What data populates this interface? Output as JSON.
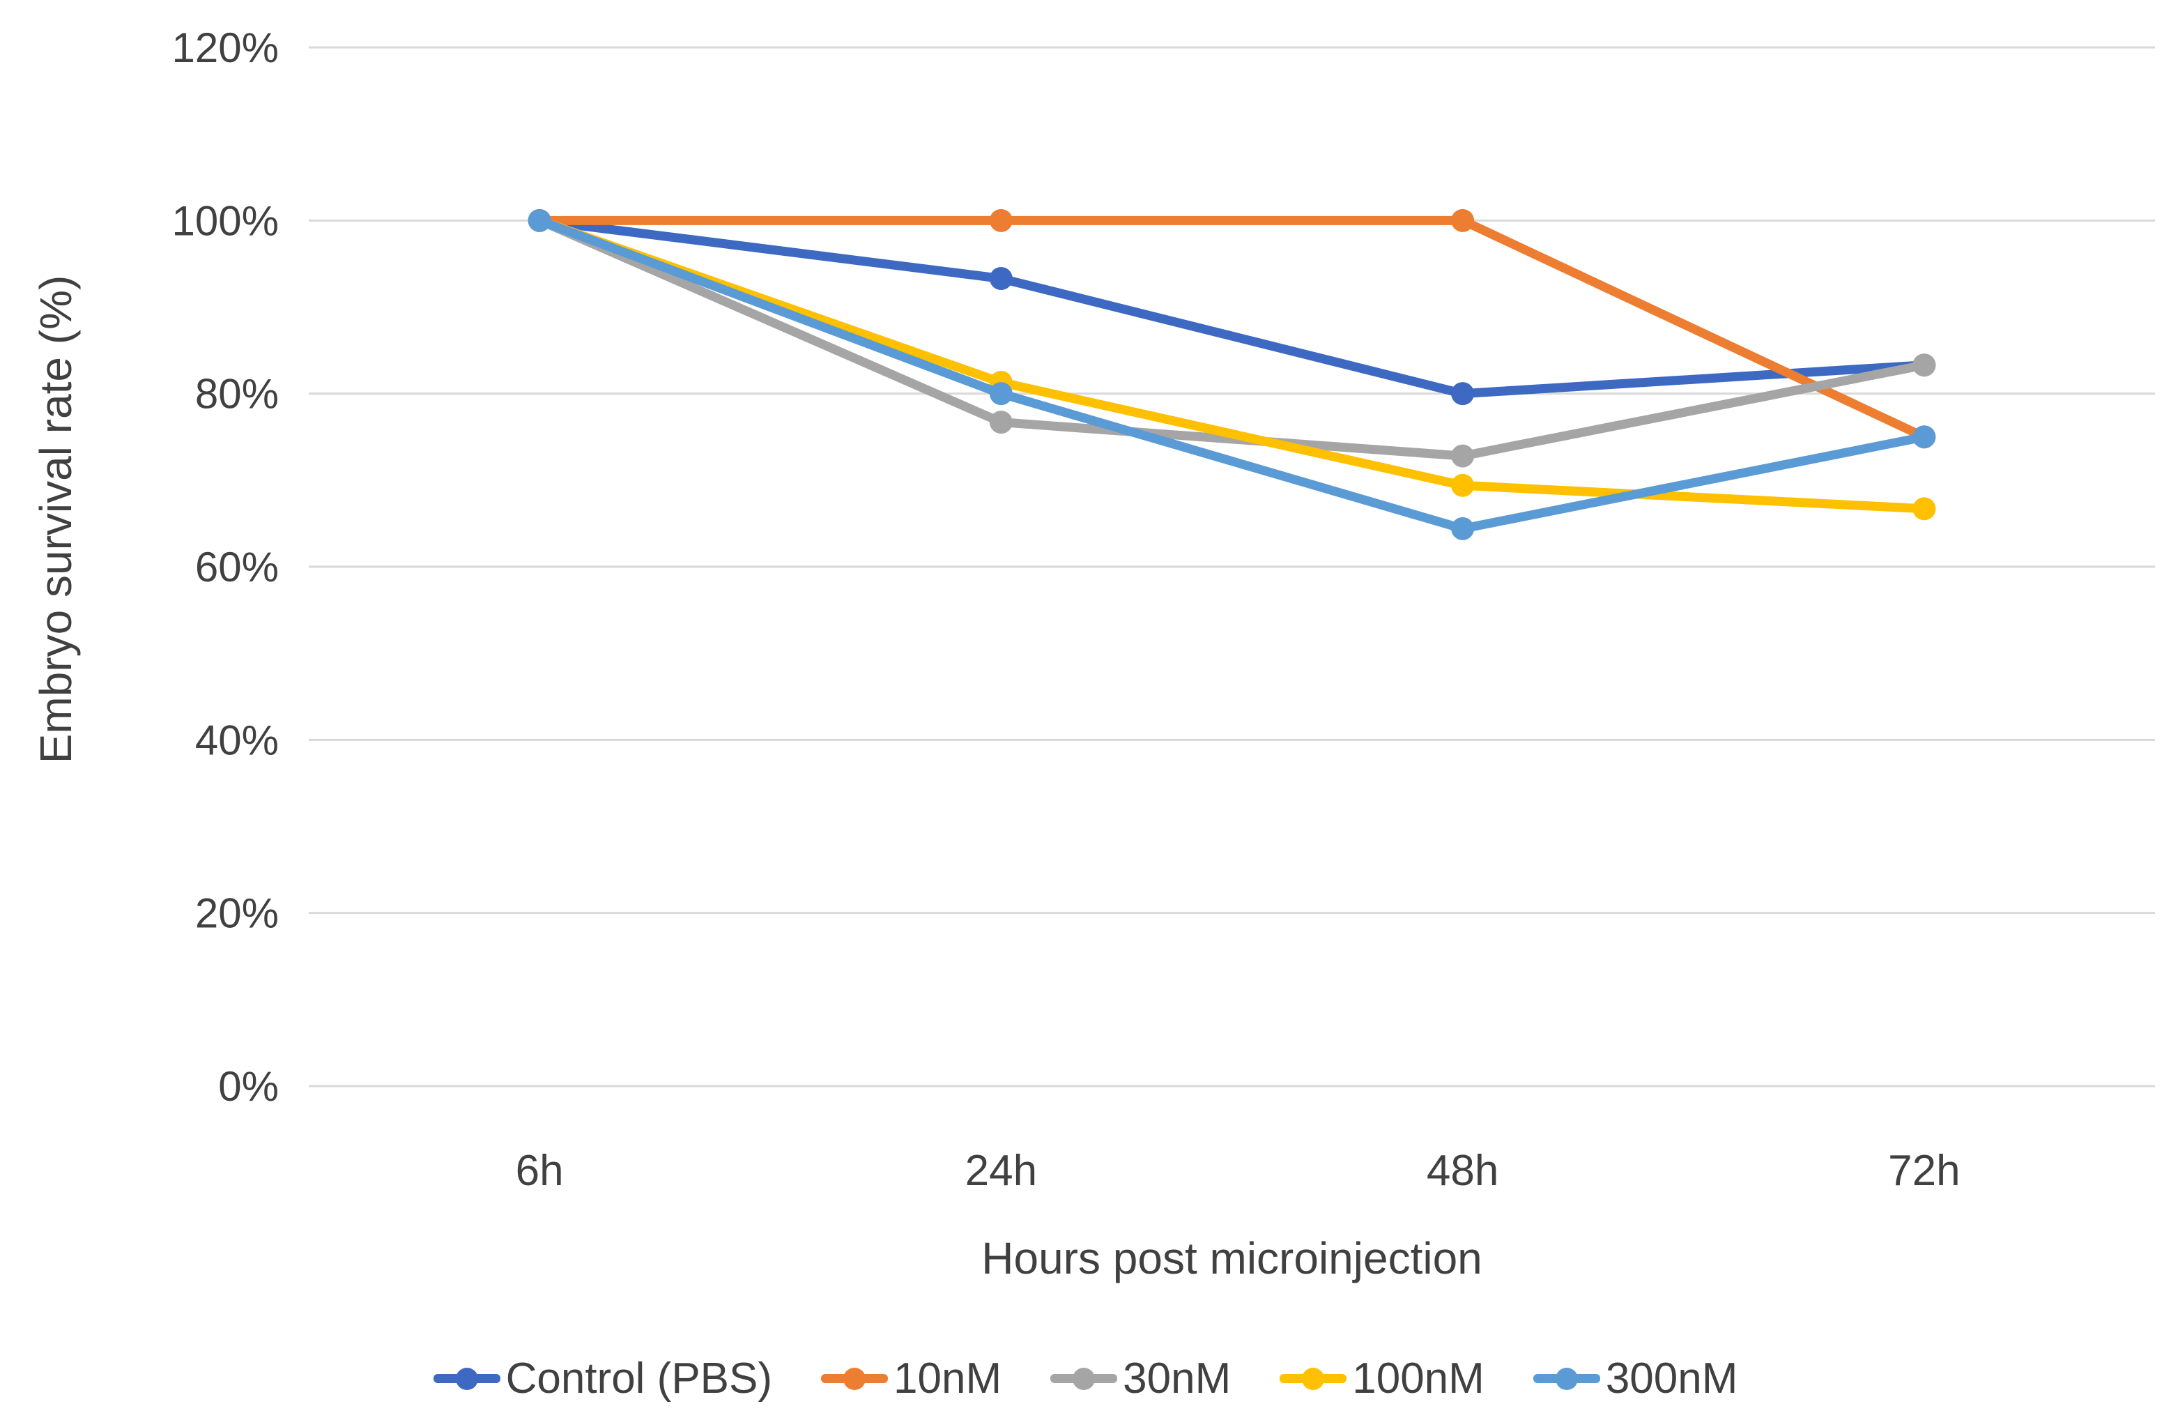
{
  "chart_data": {
    "type": "line",
    "title": "",
    "xlabel": "Hours post microinjection",
    "ylabel": "Embryo survival rate (%)",
    "categories": [
      "6h",
      "24h",
      "48h",
      "72h"
    ],
    "series": [
      {
        "name": "Control (PBS)",
        "color": "#3D69C2",
        "values": [
          100,
          93.3,
          80,
          83.3
        ]
      },
      {
        "name": "10nM",
        "color": "#ED7D31",
        "values": [
          100,
          100,
          100,
          75
        ]
      },
      {
        "name": "30nM",
        "color": "#A5A5A5",
        "values": [
          100,
          76.7,
          72.8,
          83.3
        ]
      },
      {
        "name": "100nM",
        "color": "#FFC000",
        "values": [
          100,
          81.3,
          69.4,
          66.7
        ]
      },
      {
        "name": "300nM",
        "color": "#5B9BD5",
        "values": [
          100,
          80,
          64.4,
          75
        ]
      }
    ],
    "y_axis": {
      "min": 0,
      "max": 120,
      "step": 20,
      "tick_labels": [
        "0%",
        "20%",
        "40%",
        "60%",
        "80%",
        "100%",
        "120%"
      ]
    },
    "grid": true,
    "legend_position": "bottom",
    "marker": "circle",
    "styles": {
      "grid_color": "#D9D9D9",
      "label_color": "#404040",
      "background": "#FFFFFF"
    }
  }
}
